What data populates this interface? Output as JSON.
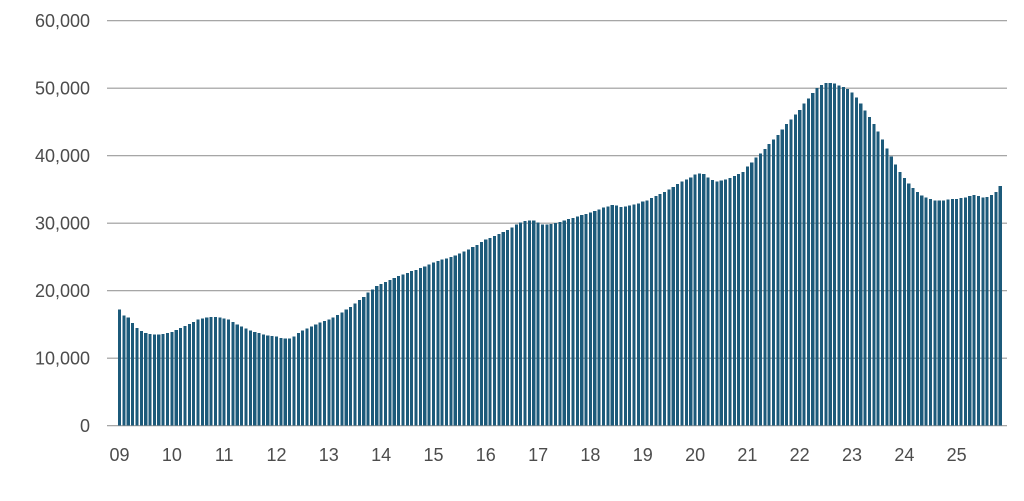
{
  "chart_data": {
    "type": "bar",
    "title": "",
    "subtitle": "",
    "xlabel": "",
    "ylabel": "",
    "x_unit": "month",
    "start_month": "2009-01",
    "end_month": "2025-11",
    "x_tick_labels": [
      "09",
      "10",
      "11",
      "12",
      "13",
      "14",
      "15",
      "16",
      "17",
      "18",
      "19",
      "20",
      "21",
      "22",
      "23",
      "24",
      "25"
    ],
    "y_tick_labels": [
      "0",
      "10,000",
      "20,000",
      "30,000",
      "40,000",
      "50,000",
      "60,000"
    ],
    "y_tick_values": [
      0,
      10000,
      20000,
      30000,
      40000,
      50000,
      60000
    ],
    "ylim": [
      0,
      60000
    ],
    "grid": "horizontal",
    "legend_position": "none",
    "bar_color": "#1c5a7a",
    "grid_color": "#9a9a9a",
    "tick_label_color": "#4c4c4c",
    "background_color": "#ffffff",
    "values": [
      17200,
      16300,
      16000,
      15200,
      14500,
      14000,
      13700,
      13600,
      13500,
      13500,
      13600,
      13700,
      13900,
      14200,
      14500,
      14800,
      15100,
      15400,
      15700,
      15900,
      16000,
      16100,
      16100,
      16000,
      15900,
      15700,
      15400,
      15000,
      14700,
      14400,
      14100,
      13900,
      13700,
      13500,
      13400,
      13300,
      13200,
      13000,
      12900,
      12900,
      13200,
      13700,
      14100,
      14400,
      14700,
      15000,
      15300,
      15500,
      15700,
      16000,
      16400,
      16800,
      17200,
      17600,
      18100,
      18600,
      19100,
      19700,
      20200,
      20700,
      21000,
      21300,
      21600,
      21900,
      22200,
      22400,
      22600,
      22900,
      23100,
      23400,
      23600,
      23900,
      24200,
      24400,
      24600,
      24800,
      25000,
      25200,
      25500,
      25800,
      26100,
      26500,
      26800,
      27200,
      27600,
      27800,
      28100,
      28400,
      28700,
      29000,
      29400,
      29800,
      30100,
      30300,
      30400,
      30400,
      30100,
      29800,
      29800,
      29900,
      30000,
      30200,
      30400,
      30600,
      30800,
      31000,
      31200,
      31400,
      31600,
      31800,
      32000,
      32300,
      32500,
      32700,
      32600,
      32400,
      32500,
      32600,
      32800,
      32900,
      33200,
      33400,
      33700,
      34000,
      34300,
      34600,
      35000,
      35400,
      35800,
      36200,
      36500,
      36800,
      37200,
      37400,
      37300,
      36800,
      36400,
      36200,
      36300,
      36500,
      36700,
      37000,
      37300,
      37600,
      38400,
      39000,
      39700,
      40300,
      41000,
      41700,
      42400,
      43100,
      43900,
      44700,
      45400,
      46100,
      46800,
      47700,
      48500,
      49300,
      50000,
      50500,
      50800,
      50800,
      50700,
      50400,
      50200,
      49900,
      49400,
      48600,
      47700,
      46700,
      45700,
      44700,
      43600,
      42400,
      41100,
      39900,
      38700,
      37600,
      36700,
      35900,
      35200,
      34600,
      34100,
      33800,
      33600,
      33400,
      33400,
      33400,
      33500,
      33600,
      33600,
      33700,
      33800,
      34000,
      34200,
      34000,
      33800,
      33900,
      34200,
      34600,
      35500
    ]
  }
}
